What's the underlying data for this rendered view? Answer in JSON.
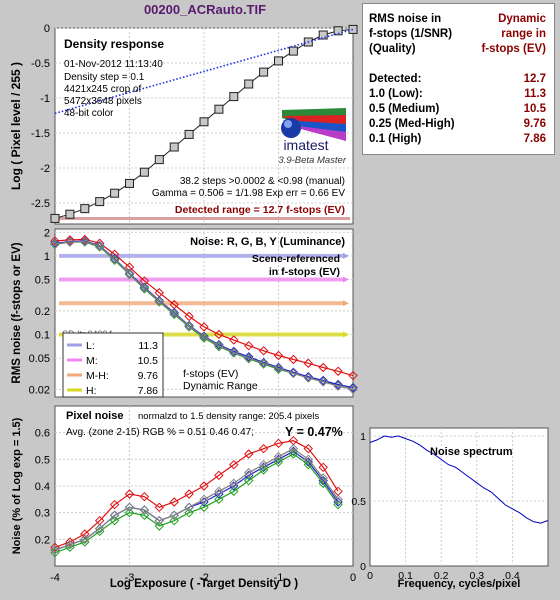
{
  "file_title": "00200_ACRauto.TIF",
  "noise_table": {
    "header_left": [
      "RMS noise in",
      "f-stops (1/SNR)",
      "(Quality)"
    ],
    "header_right": [
      "Dynamic",
      "range in",
      "f-stops (EV)"
    ],
    "rows": [
      {
        "label": "Detected:",
        "value": "12.7"
      },
      {
        "label": "1.0  (Low):",
        "value": "11.3"
      },
      {
        "label": "0.5  (Medium)",
        "value": "10.5"
      },
      {
        "label": "0.25 (Med-High)",
        "value": "9.76"
      },
      {
        "label": "0.1  (High)",
        "value": "7.86"
      }
    ]
  },
  "density_panel": {
    "title": "Density response",
    "info": [
      "01-Nov-2012 11:13:40",
      "Density step = 0.1",
      "4421x245 crop of",
      "5472x3648 pixels",
      "48-bit color"
    ],
    "logo_text": "imatest",
    "logo_sub": "3.9-Beta  Master",
    "stats": [
      "38.2 steps >0.0002 & <0.98 (manual)",
      "Gamma = 0.506 = 1/1.98  Exp err = 0.66 EV"
    ],
    "detected_range": "Detected range = 12.7 f-stops (EV)"
  },
  "noise_panel": {
    "title": "Noise: R, G, B, Y (Luminance)",
    "scene_label": [
      "Scene-referenced",
      "in f-stops (EV)"
    ],
    "overlap_text": "SD-ltr  04004",
    "legend": [
      {
        "label": "L:",
        "value": "11.3",
        "color": "#a0a0e8"
      },
      {
        "label": "M:",
        "value": "10.5",
        "color": "#ee88ee"
      },
      {
        "label": "M-H:",
        "value": "9.76",
        "color": "#f0a878"
      },
      {
        "label": "H:",
        "value": "7.86",
        "color": "#d8d820"
      }
    ],
    "dr_label": [
      "f-stops (EV)",
      "Dynamic Range"
    ]
  },
  "pixel_panel": {
    "title": "Pixel noise",
    "note": "normalzd to 1.5 density range: 205.4 pixels",
    "avg": "Avg. (zone 2-15) RGB % = 0.51  0.46  0.47;",
    "y_text": "Y = 0.47%"
  },
  "spectrum_panel": {
    "title": "Noise spectrum"
  },
  "chart_data": [
    {
      "type": "scatter",
      "title": "Density response",
      "ylabel": "Log ( Pixel level / 255 )",
      "xlim": [
        -4,
        0
      ],
      "ylim": [
        -2.8,
        0
      ],
      "yticks": [
        "0",
        "-0.5",
        "-1",
        "-1.5",
        "-2",
        "-2.5"
      ],
      "series": [
        {
          "color": "#202020",
          "marker": "square",
          "x": [
            -4.0,
            -3.8,
            -3.6,
            -3.4,
            -3.2,
            -3.0,
            -2.8,
            -2.6,
            -2.4,
            -2.2,
            -2.0,
            -1.8,
            -1.6,
            -1.4,
            -1.2,
            -1.0,
            -0.8,
            -0.6,
            -0.4,
            -0.2,
            0.0
          ],
          "y": [
            -2.72,
            -2.66,
            -2.58,
            -2.48,
            -2.36,
            -2.22,
            -2.06,
            -1.88,
            -1.7,
            -1.52,
            -1.34,
            -1.16,
            -0.98,
            -0.8,
            -0.63,
            -0.47,
            -0.33,
            -0.2,
            -0.1,
            -0.04,
            -0.02
          ]
        },
        {
          "color": "#1e2ee8",
          "marker": "dot",
          "x": [
            -4.0,
            -3.6,
            -3.2,
            -2.8,
            -2.4,
            -2.0,
            -1.6,
            -1.2,
            -0.8,
            -0.4,
            0.0
          ],
          "y": [
            -1.22,
            -1.1,
            -0.98,
            -0.86,
            -0.74,
            -0.62,
            -0.5,
            -0.38,
            -0.26,
            -0.14,
            -0.02
          ]
        }
      ],
      "detected_range_ev": 12.7
    },
    {
      "type": "line",
      "title": "Noise: R, G, B, Y (Luminance)",
      "ylabel": "RMS noise (f-stops or EV)",
      "yscale": "log",
      "xlim": [
        -4,
        0
      ],
      "ylim": [
        0.016,
        2.2
      ],
      "yticks": [
        "2",
        "1",
        "0.5",
        "0.2",
        "0.1",
        "0.05",
        "0.02"
      ],
      "thresholds": [
        {
          "level": 1.0,
          "range": 11.3,
          "color": "#a0a0e8"
        },
        {
          "level": 0.5,
          "range": 10.5,
          "color": "#ee88ee"
        },
        {
          "level": 0.25,
          "range": 9.76,
          "color": "#f0a878"
        },
        {
          "level": 0.1,
          "range": 7.86,
          "color": "#d8d820"
        }
      ],
      "x": [
        -4.0,
        -3.8,
        -3.6,
        -3.4,
        -3.2,
        -3.0,
        -2.8,
        -2.6,
        -2.4,
        -2.2,
        -2.0,
        -1.8,
        -1.6,
        -1.4,
        -1.2,
        -1.0,
        -0.8,
        -0.6,
        -0.4,
        -0.2,
        0.0
      ],
      "series": [
        {
          "color": "#e01010",
          "values": [
            1.55,
            1.6,
            1.62,
            1.45,
            1.05,
            0.72,
            0.48,
            0.34,
            0.24,
            0.17,
            0.125,
            0.1,
            0.085,
            0.072,
            0.062,
            0.054,
            0.048,
            0.043,
            0.038,
            0.034,
            0.03
          ]
        },
        {
          "color": "#20a020",
          "values": [
            1.4,
            1.5,
            1.5,
            1.3,
            0.88,
            0.58,
            0.38,
            0.26,
            0.18,
            0.125,
            0.09,
            0.07,
            0.058,
            0.049,
            0.042,
            0.036,
            0.032,
            0.028,
            0.025,
            0.023,
            0.021
          ]
        },
        {
          "color": "#2020d0",
          "values": [
            1.45,
            1.52,
            1.55,
            1.35,
            0.92,
            0.6,
            0.4,
            0.27,
            0.19,
            0.13,
            0.095,
            0.074,
            0.061,
            0.052,
            0.044,
            0.038,
            0.033,
            0.029,
            0.026,
            0.023,
            0.021
          ]
        },
        {
          "color": "#808080",
          "values": [
            1.42,
            1.5,
            1.52,
            1.33,
            0.9,
            0.59,
            0.39,
            0.265,
            0.185,
            0.128,
            0.093,
            0.072,
            0.059,
            0.05,
            0.043,
            0.037,
            0.032,
            0.028,
            0.025,
            0.022,
            0.02
          ]
        }
      ]
    },
    {
      "type": "line",
      "title": "Pixel noise",
      "xlabel": "Log Exposure  ( -Target Density D )",
      "ylabel": "Noise (% of Log exp = 1.5)",
      "xlim": [
        -4,
        0
      ],
      "ylim": [
        0.1,
        0.7
      ],
      "xticks": [
        "-4",
        "-3",
        "-2",
        "-1",
        "0"
      ],
      "yticks": [
        "0.6",
        "0.5",
        "0.4",
        "0.3",
        "0.2"
      ],
      "x": [
        -4.0,
        -3.8,
        -3.6,
        -3.4,
        -3.2,
        -3.0,
        -2.8,
        -2.6,
        -2.4,
        -2.2,
        -2.0,
        -1.8,
        -1.6,
        -1.4,
        -1.2,
        -1.0,
        -0.8,
        -0.6,
        -0.4,
        -0.2
      ],
      "series": [
        {
          "color": "#e01010",
          "values": [
            0.17,
            0.19,
            0.22,
            0.27,
            0.33,
            0.37,
            0.36,
            0.32,
            0.34,
            0.37,
            0.4,
            0.44,
            0.48,
            0.52,
            0.54,
            0.56,
            0.57,
            0.54,
            0.47,
            0.38
          ]
        },
        {
          "color": "#2020d0",
          "values": [
            0.16,
            0.18,
            0.2,
            0.24,
            0.29,
            0.32,
            0.31,
            0.27,
            0.29,
            0.32,
            0.34,
            0.37,
            0.4,
            0.44,
            0.47,
            0.5,
            0.53,
            0.49,
            0.42,
            0.34
          ]
        },
        {
          "color": "#20a020",
          "values": [
            0.15,
            0.17,
            0.19,
            0.23,
            0.27,
            0.3,
            0.29,
            0.25,
            0.27,
            0.3,
            0.32,
            0.35,
            0.38,
            0.42,
            0.46,
            0.49,
            0.52,
            0.48,
            0.41,
            0.33
          ]
        },
        {
          "color": "#808080",
          "values": [
            0.16,
            0.18,
            0.2,
            0.24,
            0.29,
            0.32,
            0.31,
            0.27,
            0.29,
            0.32,
            0.35,
            0.38,
            0.41,
            0.45,
            0.48,
            0.51,
            0.54,
            0.5,
            0.43,
            0.35
          ]
        }
      ]
    },
    {
      "type": "line",
      "title": "Noise spectrum",
      "xlabel": "Frequency, cycles/pixel",
      "xlim": [
        0,
        0.5
      ],
      "ylim": [
        0,
        1
      ],
      "xticks": [
        "0",
        "0.1",
        "0.2",
        "0.3",
        "0.4"
      ],
      "yticks": [
        "1",
        "0.5",
        "0"
      ],
      "x": [
        0.0,
        0.02,
        0.04,
        0.06,
        0.08,
        0.1,
        0.12,
        0.14,
        0.16,
        0.18,
        0.2,
        0.22,
        0.24,
        0.26,
        0.28,
        0.3,
        0.32,
        0.34,
        0.36,
        0.38,
        0.4,
        0.42,
        0.44,
        0.46,
        0.48,
        0.5
      ],
      "series": [
        {
          "color": "#0000c0",
          "values": [
            0.95,
            0.97,
            1.0,
            0.99,
            1.0,
            0.98,
            0.96,
            0.93,
            0.89,
            0.86,
            0.82,
            0.78,
            0.76,
            0.72,
            0.68,
            0.64,
            0.6,
            0.57,
            0.52,
            0.47,
            0.44,
            0.41,
            0.37,
            0.34,
            0.33,
            0.35
          ]
        }
      ]
    }
  ]
}
